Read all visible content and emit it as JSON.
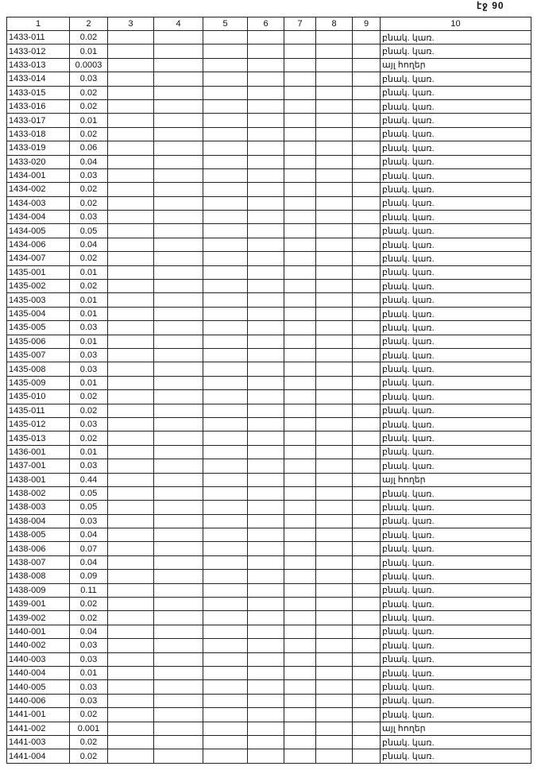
{
  "page_label": "էջ 90",
  "headers": [
    "1",
    "2",
    "3",
    "4",
    "5",
    "6",
    "7",
    "8",
    "9",
    "10"
  ],
  "rows": [
    [
      "1433-011",
      "0.02",
      "բնակ. կառ."
    ],
    [
      "1433-012",
      "0.01",
      "բնակ. կառ."
    ],
    [
      "1433-013",
      "0.0003",
      "այլ հողեր"
    ],
    [
      "1433-014",
      "0.03",
      "բնակ. կառ."
    ],
    [
      "1433-015",
      "0.02",
      "բնակ. կառ."
    ],
    [
      "1433-016",
      "0.02",
      "բնակ. կառ."
    ],
    [
      "1433-017",
      "0.01",
      "բնակ. կառ."
    ],
    [
      "1433-018",
      "0.02",
      "բնակ. կառ."
    ],
    [
      "1433-019",
      "0.06",
      "բնակ. կառ."
    ],
    [
      "1433-020",
      "0.04",
      "բնակ. կառ."
    ],
    [
      "1434-001",
      "0.03",
      "բնակ. կառ."
    ],
    [
      "1434-002",
      "0.02",
      "բնակ. կառ."
    ],
    [
      "1434-003",
      "0.02",
      "բնակ. կառ."
    ],
    [
      "1434-004",
      "0.03",
      "բնակ. կառ."
    ],
    [
      "1434-005",
      "0.05",
      "բնակ. կառ."
    ],
    [
      "1434-006",
      "0.04",
      "բնակ. կառ."
    ],
    [
      "1434-007",
      "0.02",
      "բնակ. կառ."
    ],
    [
      "1435-001",
      "0.01",
      "բնակ. կառ."
    ],
    [
      "1435-002",
      "0.02",
      "բնակ. կառ."
    ],
    [
      "1435-003",
      "0.01",
      "բնակ. կառ."
    ],
    [
      "1435-004",
      "0.01",
      "բնակ. կառ."
    ],
    [
      "1435-005",
      "0.03",
      "բնակ. կառ."
    ],
    [
      "1435-006",
      "0.01",
      "բնակ. կառ."
    ],
    [
      "1435-007",
      "0.03",
      "բնակ. կառ."
    ],
    [
      "1435-008",
      "0.03",
      "բնակ. կառ."
    ],
    [
      "1435-009",
      "0.01",
      "բնակ. կառ."
    ],
    [
      "1435-010",
      "0.02",
      "բնակ. կառ."
    ],
    [
      "1435-011",
      "0.02",
      "բնակ. կառ."
    ],
    [
      "1435-012",
      "0.03",
      "բնակ. կառ."
    ],
    [
      "1435-013",
      "0.02",
      "բնակ. կառ."
    ],
    [
      "1436-001",
      "0.01",
      "բնակ. կառ."
    ],
    [
      "1437-001",
      "0.03",
      "բնակ. կառ."
    ],
    [
      "1438-001",
      "0.44",
      "այլ հողեր"
    ],
    [
      "1438-002",
      "0.05",
      "բնակ. կառ."
    ],
    [
      "1438-003",
      "0.05",
      "բնակ. կառ."
    ],
    [
      "1438-004",
      "0.03",
      "բնակ. կառ."
    ],
    [
      "1438-005",
      "0.04",
      "բնակ. կառ."
    ],
    [
      "1438-006",
      "0.07",
      "բնակ. կառ."
    ],
    [
      "1438-007",
      "0.04",
      "բնակ. կառ."
    ],
    [
      "1438-008",
      "0.09",
      "բնակ. կառ."
    ],
    [
      "1438-009",
      "0.11",
      "բնակ. կառ."
    ],
    [
      "1439-001",
      "0.02",
      "բնակ. կառ."
    ],
    [
      "1439-002",
      "0.02",
      "բնակ. կառ."
    ],
    [
      "1440-001",
      "0.04",
      "բնակ. կառ."
    ],
    [
      "1440-002",
      "0.03",
      "բնակ. կառ."
    ],
    [
      "1440-003",
      "0.03",
      "բնակ. կառ."
    ],
    [
      "1440-004",
      "0.01",
      "բնակ. կառ."
    ],
    [
      "1440-005",
      "0.03",
      "բնակ. կառ."
    ],
    [
      "1440-006",
      "0.03",
      "բնակ. կառ."
    ],
    [
      "1441-001",
      "0.02",
      "բնակ. կառ."
    ],
    [
      "1441-002",
      "0.001",
      "այլ հողեր"
    ],
    [
      "1441-003",
      "0.02",
      "բնակ. կառ."
    ],
    [
      "1441-004",
      "0.02",
      "բնակ. կառ."
    ]
  ]
}
